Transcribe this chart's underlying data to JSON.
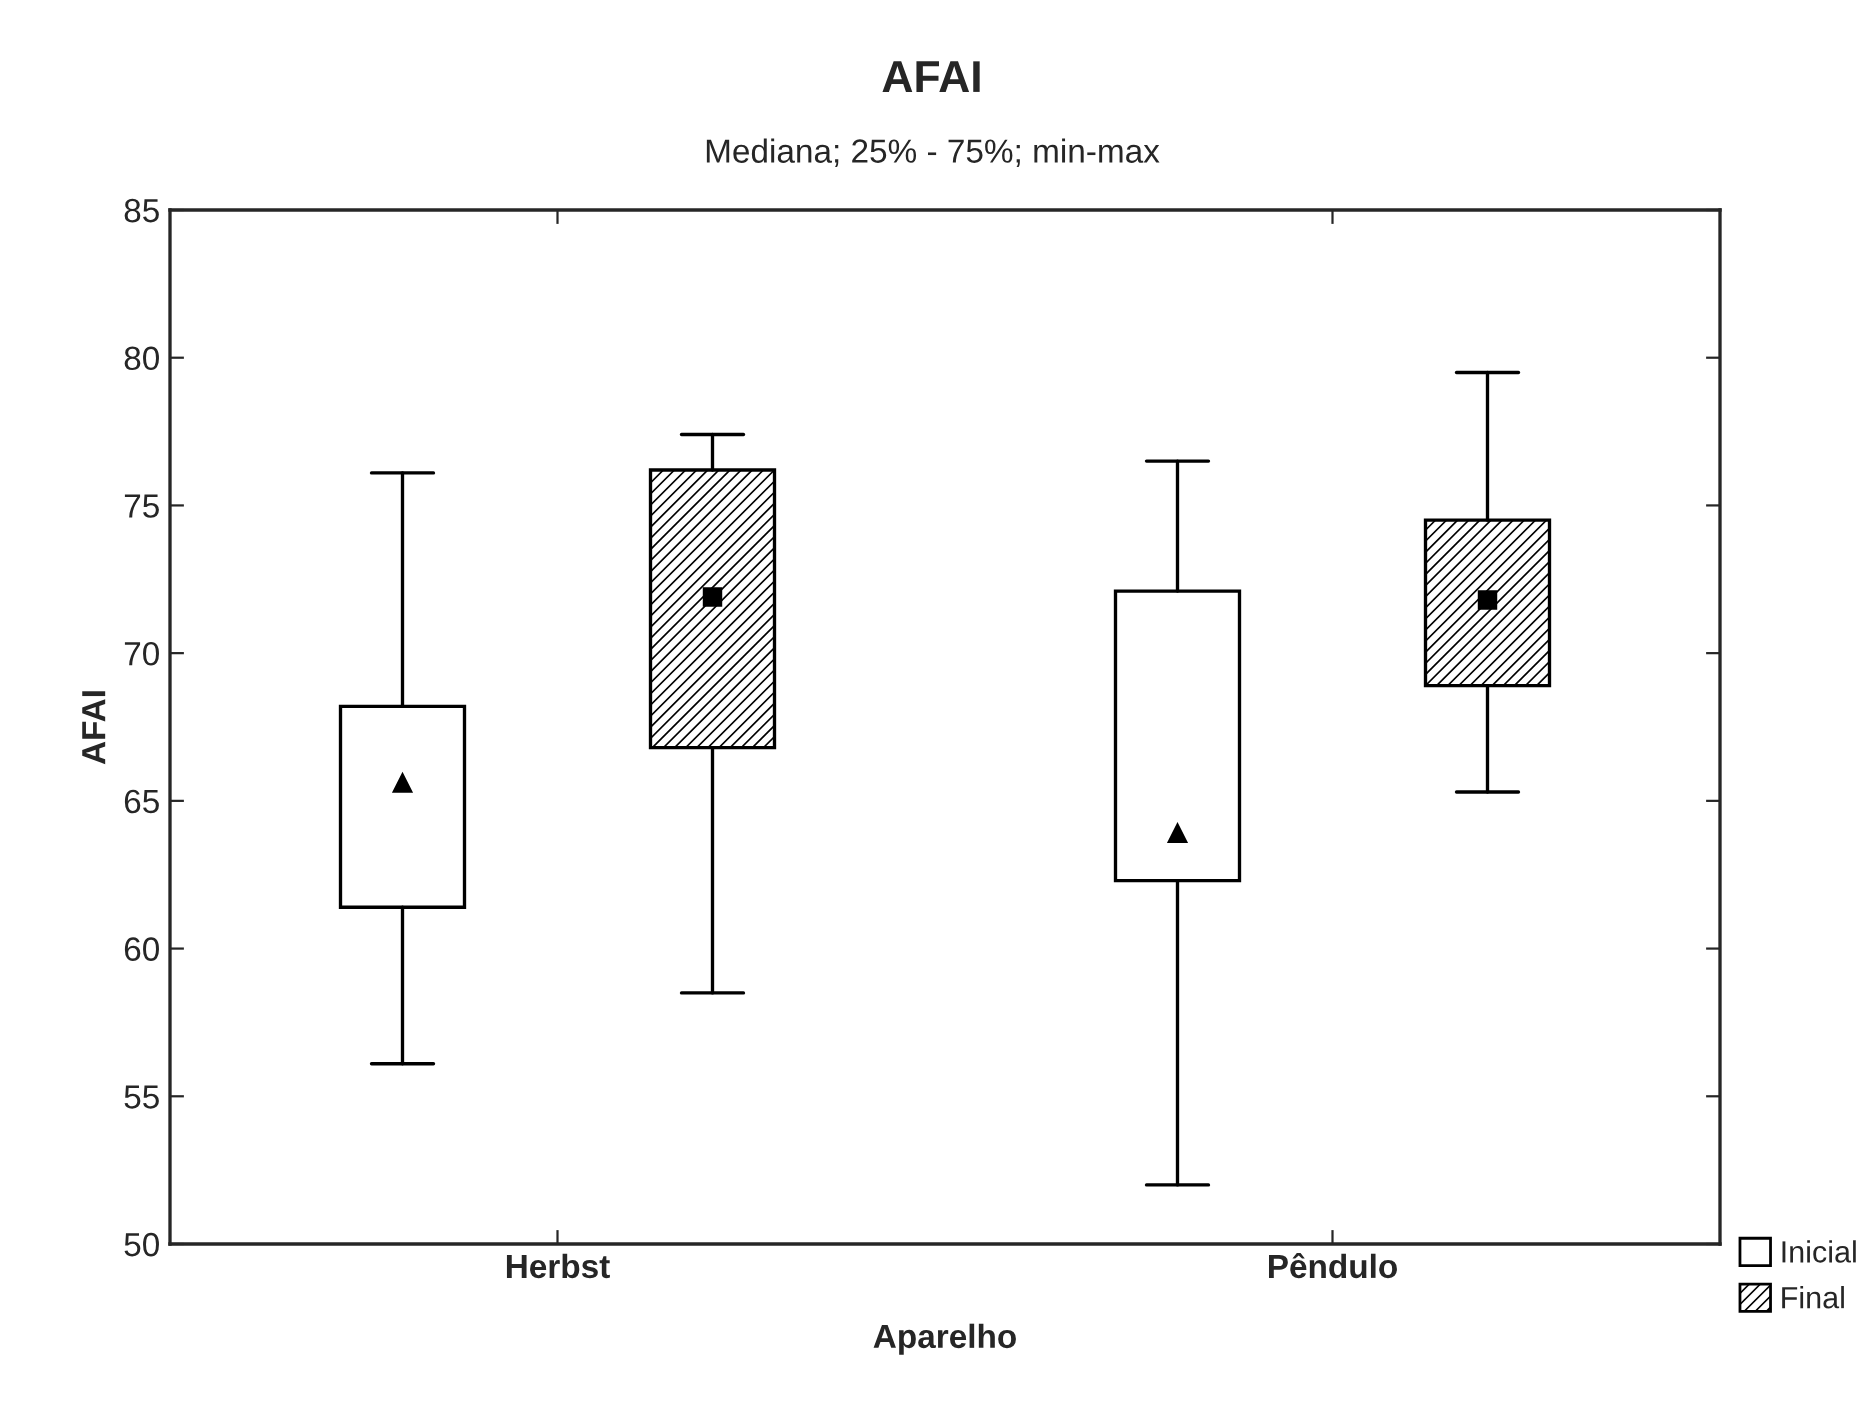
{
  "chart_data": {
    "type": "box",
    "title": "AFAI",
    "subtitle": "Mediana; 25% - 75%; min-max",
    "xlabel": "Aparelho",
    "ylabel": "AFAI",
    "categories": [
      "Herbst",
      "Pêndulo"
    ],
    "series": [
      {
        "name": "Inicial",
        "color": "#ffffff",
        "marker": "triangle",
        "boxes": [
          {
            "low": 56.1,
            "q1": 61.4,
            "median": 65.6,
            "q3": 68.2,
            "high": 76.1
          },
          {
            "low": 52.0,
            "q1": 62.3,
            "median": 63.9,
            "q3": 72.1,
            "high": 76.5
          }
        ]
      },
      {
        "name": "Final",
        "color": "#000000",
        "marker": "square",
        "boxes": [
          {
            "low": 58.5,
            "q1": 66.8,
            "median": 71.9,
            "q3": 76.2,
            "high": 77.4
          },
          {
            "low": 65.3,
            "q1": 68.9,
            "median": 71.8,
            "q3": 74.5,
            "high": 79.5
          }
        ]
      }
    ],
    "ylim": [
      50,
      85
    ],
    "yticks": [
      50,
      55,
      60,
      65,
      70,
      75,
      80,
      85
    ],
    "grid": false,
    "legend": "bottom right"
  }
}
